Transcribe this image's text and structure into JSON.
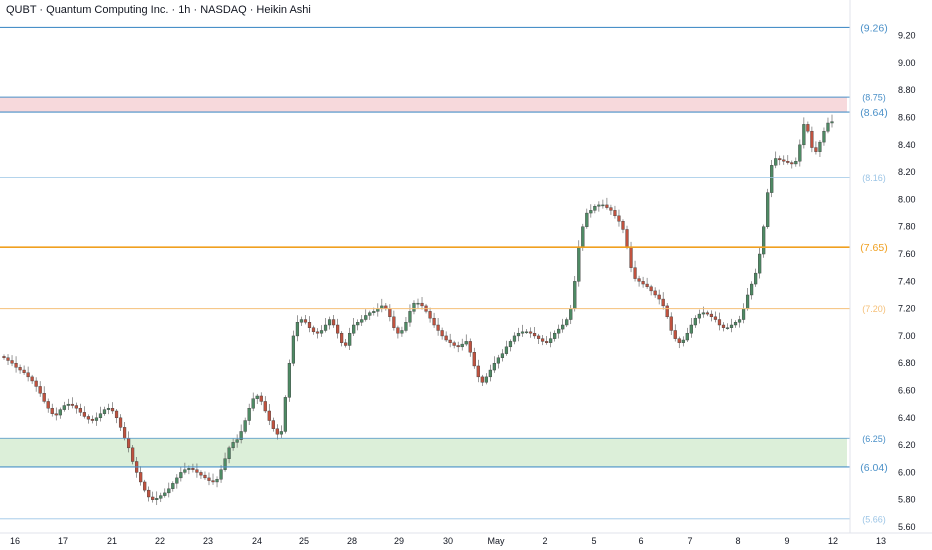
{
  "chart_data": {
    "type": "candlestick",
    "title": "QUBT · Quantum Computing Inc. · 1h · NASDAQ · Heikin Ashi",
    "ylim": [
      5.6,
      9.3
    ],
    "y_ticks": [
      "9.20",
      "9.00",
      "8.80",
      "8.60",
      "8.40",
      "8.20",
      "8.00",
      "7.80",
      "7.60",
      "7.40",
      "7.20",
      "7.00",
      "6.80",
      "6.60",
      "6.40",
      "6.20",
      "6.00",
      "5.80",
      "5.60"
    ],
    "x_ticks": [
      "16",
      "17",
      "21",
      "22",
      "23",
      "24",
      "25",
      "28",
      "29",
      "30",
      "May",
      "2",
      "5",
      "6",
      "7",
      "8",
      "9",
      "12",
      "13"
    ],
    "grid": false,
    "colors": {
      "up": "#4e8a64",
      "down": "#c0523f",
      "resistance_zone": "#f7d9dc",
      "support_zone": "#dcefd9"
    },
    "levels": [
      {
        "label": "(9.26)",
        "value": 9.26,
        "color": "#4a90c8",
        "width": 1.2
      },
      {
        "label": "(8.75)",
        "value": 8.75,
        "color": "#4a90c8",
        "width": 1.0
      },
      {
        "label": "(8.64)",
        "value": 8.64,
        "color": "#4a90c8",
        "width": 1.2
      },
      {
        "label": "(8.16)",
        "value": 8.16,
        "color": "#9cc5e6",
        "width": 0.8
      },
      {
        "label": "(7.65)",
        "value": 7.65,
        "color": "#f0a020",
        "width": 1.6
      },
      {
        "label": "(7.20)",
        "value": 7.2,
        "color": "#f5c079",
        "width": 1.0
      },
      {
        "label": "(6.25)",
        "value": 6.25,
        "color": "#4a90c8",
        "width": 0.8
      },
      {
        "label": "(6.04)",
        "value": 6.04,
        "color": "#4a90c8",
        "width": 1.2
      },
      {
        "label": "(5.66)",
        "value": 5.66,
        "color": "#9cc5e6",
        "width": 0.8
      }
    ],
    "zones": [
      {
        "from": 8.64,
        "to": 8.75,
        "kind": "resistance"
      },
      {
        "from": 6.04,
        "to": 6.25,
        "kind": "support"
      }
    ],
    "close_series": [
      6.84,
      6.82,
      6.8,
      6.77,
      6.75,
      6.73,
      6.7,
      6.67,
      6.63,
      6.58,
      6.52,
      6.47,
      6.43,
      6.42,
      6.46,
      6.49,
      6.5,
      6.49,
      6.47,
      6.44,
      6.41,
      6.39,
      6.38,
      6.4,
      6.43,
      6.46,
      6.47,
      6.45,
      6.4,
      6.33,
      6.25,
      6.18,
      6.08,
      6.0,
      5.93,
      5.87,
      5.82,
      5.8,
      5.81,
      5.83,
      5.85,
      5.88,
      5.92,
      5.96,
      6.0,
      6.02,
      6.03,
      6.02,
      6.0,
      5.98,
      5.96,
      5.94,
      5.93,
      5.95,
      6.02,
      6.1,
      6.18,
      6.22,
      6.24,
      6.3,
      6.38,
      6.47,
      6.54,
      6.56,
      6.52,
      6.45,
      6.38,
      6.32,
      6.28,
      6.3,
      6.55,
      6.8,
      7.0,
      7.1,
      7.12,
      7.1,
      7.06,
      7.03,
      7.02,
      7.04,
      7.08,
      7.12,
      7.08,
      7.02,
      6.95,
      6.93,
      7.02,
      7.08,
      7.1,
      7.12,
      7.15,
      7.17,
      7.18,
      7.2,
      7.22,
      7.2,
      7.14,
      7.06,
      7.02,
      7.04,
      7.1,
      7.18,
      7.24,
      7.24,
      7.22,
      7.18,
      7.13,
      7.08,
      7.04,
      7.0,
      6.97,
      6.95,
      6.93,
      6.92,
      6.94,
      6.96,
      6.88,
      6.78,
      6.7,
      6.66,
      6.7,
      6.75,
      6.8,
      6.84,
      6.87,
      6.92,
      6.96,
      7.0,
      7.02,
      7.03,
      7.03,
      7.02,
      7.0,
      6.98,
      6.96,
      6.95,
      6.98,
      7.02,
      7.05,
      7.08,
      7.12,
      7.2,
      7.4,
      7.65,
      7.8,
      7.9,
      7.92,
      7.95,
      7.96,
      7.96,
      7.94,
      7.92,
      7.88,
      7.84,
      7.78,
      7.65,
      7.5,
      7.42,
      7.4,
      7.38,
      7.36,
      7.33,
      7.3,
      7.27,
      7.22,
      7.14,
      7.04,
      6.98,
      6.95,
      6.97,
      7.02,
      7.08,
      7.13,
      7.16,
      7.17,
      7.16,
      7.14,
      7.12,
      7.08,
      7.06,
      7.06,
      7.08,
      7.1,
      7.12,
      7.2,
      7.3,
      7.38,
      7.46,
      7.6,
      7.8,
      8.05,
      8.25,
      8.3,
      8.29,
      8.28,
      8.27,
      8.26,
      8.28,
      8.4,
      8.55,
      8.5,
      8.38,
      8.35,
      8.42,
      8.5,
      8.56,
      8.57
    ]
  }
}
